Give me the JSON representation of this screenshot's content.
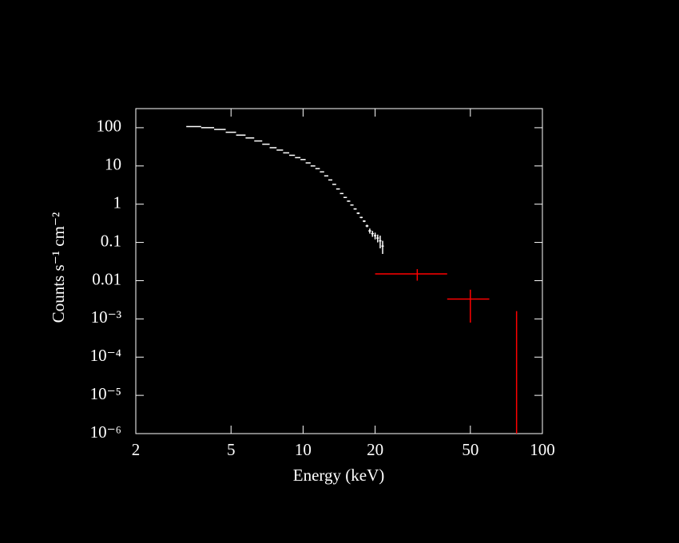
{
  "chart_data": {
    "type": "errorbar",
    "xlabel": "Energy (keV)",
    "ylabel": "Counts s⁻¹ cm⁻²",
    "xscale": "log",
    "yscale": "log",
    "xlim": [
      2,
      100
    ],
    "ylim": [
      1e-06,
      316
    ],
    "xticks": [
      2,
      5,
      10,
      20,
      50,
      100
    ],
    "yticks": [
      100,
      10,
      1,
      0.1,
      0.01,
      {
        "value": 0.001,
        "label": "10⁻³"
      },
      {
        "value": 0.0001,
        "label": "10⁻⁴"
      },
      {
        "value": 1e-05,
        "label": "10⁻⁵"
      },
      {
        "value": 1e-06,
        "label": "10⁻⁶"
      }
    ],
    "series": [
      {
        "color": "#ffffff",
        "x": [
          3.5,
          4.0,
          4.5,
          5.0,
          5.5,
          6.0,
          6.5,
          7.0,
          7.5,
          8.0,
          8.5,
          9.0,
          9.5,
          10,
          10.5,
          11,
          11.5,
          12,
          12.5,
          13,
          13.5,
          14,
          14.5,
          15,
          15.5,
          16,
          16.5,
          17,
          17.5,
          18,
          18.5,
          19,
          19.5,
          20,
          20.5,
          21,
          21.5
        ],
        "xerr": [
          0.25,
          0.25,
          0.25,
          0.25,
          0.25,
          0.25,
          0.25,
          0.25,
          0.25,
          0.25,
          0.25,
          0.25,
          0.25,
          0.25,
          0.25,
          0.25,
          0.25,
          0.25,
          0.25,
          0.25,
          0.25,
          0.25,
          0.25,
          0.25,
          0.25,
          0.25,
          0.25,
          0.25,
          0.25,
          0.25,
          0.25,
          0.25,
          0.25,
          0.25,
          0.25,
          0.25,
          0.25
        ],
        "values": [
          107,
          100,
          90,
          76,
          64,
          54,
          45,
          37,
          30,
          26,
          22,
          19,
          16.5,
          14.7,
          12,
          10,
          8.5,
          7,
          5.5,
          4.3,
          3.3,
          2.5,
          1.9,
          1.5,
          1.2,
          0.95,
          0.75,
          0.58,
          0.45,
          0.36,
          0.27,
          0.2,
          0.17,
          0.15,
          0.13,
          0.11,
          0.08
        ],
        "yerr": [
          1,
          1,
          1,
          0.8,
          0.7,
          0.6,
          0.5,
          0.4,
          0.3,
          0.3,
          0.25,
          0.2,
          0.2,
          0.2,
          0.15,
          0.15,
          0.12,
          0.1,
          0.1,
          0.08,
          0.07,
          0.06,
          0.05,
          0.04,
          0.04,
          0.03,
          0.03,
          0.03,
          0.02,
          0.02,
          0.02,
          0.03,
          0.03,
          0.03,
          0.03,
          0.04,
          0.03
        ]
      },
      {
        "color": "#ff0000",
        "x": [
          30,
          50,
          78
        ],
        "xerr": [
          10,
          10,
          0
        ],
        "values": [
          0.015,
          0.0033,
          0.0008
        ],
        "yerr": [
          0.005,
          0.0025,
          0.0008
        ]
      }
    ]
  }
}
